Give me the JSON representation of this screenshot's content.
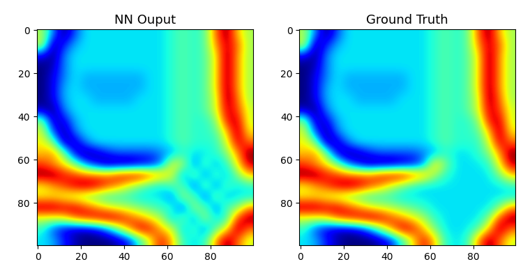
{
  "chart_data": [
    {
      "type": "heatmap",
      "title": "NN Ouput",
      "xlim": [
        -0.5,
        99.5
      ],
      "ylim": [
        99.5,
        -0.5
      ],
      "xticks": [
        0,
        20,
        40,
        60,
        80
      ],
      "yticks": [
        0,
        20,
        40,
        60,
        80
      ],
      "color_range": [
        -1,
        1
      ],
      "cells": [
        [
          0.1,
          -0.5,
          -1,
          -0.6,
          -0.3,
          -0.3,
          -0.3,
          -0.3,
          -0.3,
          -0.3,
          -0.3,
          -0.3,
          -0.2,
          -0.1,
          -0.2,
          -0.1,
          0.6,
          1,
          0.4,
          0.1
        ],
        [
          0.2,
          -1,
          -0.7,
          -0.4,
          -0.3,
          -0.3,
          -0.3,
          -0.3,
          -0.3,
          -0.3,
          -0.3,
          -0.3,
          -0.2,
          -0.1,
          -0.2,
          -0.1,
          0.5,
          0.9,
          0.6,
          0.1
        ],
        [
          -0.8,
          -1,
          -0.5,
          -0.3,
          -0.3,
          -0.3,
          -0.3,
          -0.3,
          -0.3,
          -0.3,
          -0.3,
          -0.3,
          -0.2,
          -0.1,
          -0.2,
          -0.1,
          0.3,
          1,
          0.5,
          0.1
        ],
        [
          -1,
          -0.9,
          -0.5,
          -0.3,
          -0.3,
          -0.3,
          -0.3,
          -0.3,
          -0.3,
          -0.3,
          -0.3,
          -0.3,
          -0.2,
          -0.1,
          -0.2,
          -0.1,
          0.3,
          1,
          0.5,
          0.1
        ],
        [
          -1,
          -0.8,
          -0.5,
          -0.3,
          -0.4,
          -0.4,
          -0.4,
          -0.4,
          -0.4,
          -0.4,
          -0.3,
          -0.3,
          -0.2,
          -0.1,
          -0.2,
          -0.1,
          0.3,
          1,
          0.5,
          0.1
        ],
        [
          -1,
          -0.8,
          -0.4,
          -0.3,
          -0.4,
          -0.4,
          -0.4,
          -0.4,
          -0.4,
          -0.4,
          -0.3,
          -0.3,
          -0.2,
          -0.1,
          -0.2,
          -0.1,
          0.3,
          1,
          0.5,
          0.1
        ],
        [
          -1,
          -0.8,
          -0.4,
          -0.3,
          -0.3,
          -0.4,
          -0.4,
          -0.4,
          -0.4,
          -0.3,
          -0.3,
          -0.3,
          -0.2,
          -0.1,
          -0.2,
          -0.1,
          0.2,
          1,
          0.6,
          0.1
        ],
        [
          -0.9,
          -1,
          -0.5,
          -0.3,
          -0.3,
          -0.3,
          -0.3,
          -0.3,
          -0.3,
          -0.3,
          -0.3,
          -0.3,
          -0.2,
          -0.1,
          -0.2,
          -0.1,
          0.2,
          0.9,
          0.7,
          0.2
        ],
        [
          0,
          -0.9,
          -0.8,
          -0.4,
          -0.3,
          -0.3,
          -0.3,
          -0.3,
          -0.3,
          -0.3,
          -0.3,
          -0.3,
          -0.2,
          -0.1,
          -0.2,
          -0.2,
          0,
          0.8,
          0.9,
          0.2
        ],
        [
          0.2,
          -0.6,
          -1,
          -0.5,
          -0.3,
          -0.3,
          -0.3,
          -0.3,
          -0.3,
          -0.3,
          -0.3,
          -0.3,
          -0.2,
          -0.1,
          -0.2,
          -0.2,
          -0.1,
          0.4,
          1,
          0.3
        ],
        [
          0.3,
          0,
          -0.9,
          -0.9,
          -0.5,
          -0.3,
          -0.3,
          -0.3,
          -0.3,
          -0.3,
          -0.3,
          -0.3,
          -0.2,
          -0.1,
          -0.2,
          -0.2,
          -0.2,
          0.2,
          0.9,
          0.6
        ],
        [
          0.4,
          0.5,
          0,
          -0.8,
          -1,
          -0.9,
          -0.7,
          -0.6,
          -0.6,
          -0.6,
          -0.6,
          -0.5,
          -0.4,
          -0.2,
          -0.3,
          -0.3,
          -0.2,
          0,
          0.5,
          1
        ],
        [
          0.7,
          0.5,
          0.3,
          0,
          -0.5,
          -0.8,
          -1,
          -1,
          -1,
          -0.9,
          -0.8,
          -0.5,
          0.3,
          0.1,
          -0.5,
          -0.1,
          -0.4,
          -0.2,
          0.3,
          0.9
        ],
        [
          1,
          1,
          0.8,
          0.7,
          0.6,
          0.6,
          0.6,
          0.8,
          0.9,
          0.9,
          0.7,
          0.5,
          0.2,
          -0.5,
          0,
          -0.5,
          -0.1,
          -0.4,
          0,
          0.4
        ],
        [
          0.3,
          0.5,
          0.7,
          0.9,
          1,
          0.9,
          0.7,
          0.5,
          0.2,
          0,
          -0.2,
          -0.3,
          -0.1,
          -0.1,
          -0.6,
          0,
          -0.5,
          -0.1,
          -0.3,
          -0.2
        ],
        [
          0.3,
          0.3,
          0.2,
          0.1,
          0,
          -0.1,
          -0.2,
          -0.2,
          -0.2,
          -0.3,
          -0.3,
          -0.3,
          -0.5,
          0.1,
          -0.1,
          -0.6,
          0,
          -0.4,
          -0.3,
          -0.3
        ],
        [
          1,
          1,
          0.9,
          0.9,
          0.7,
          0.5,
          0.3,
          0.2,
          0.1,
          0,
          -0.1,
          -0.2,
          -0.2,
          -0.6,
          0.1,
          -0.1,
          -0.5,
          -0.1,
          0,
          0.5
        ],
        [
          0.2,
          0.2,
          0.3,
          0.6,
          0.8,
          0.9,
          1,
          0.9,
          0.7,
          0.5,
          0.3,
          0.1,
          -0.4,
          0,
          -0.5,
          0.1,
          -0.3,
          -0.2,
          0.7,
          1
        ],
        [
          -0.2,
          -0.6,
          -0.8,
          -0.9,
          -0.9,
          -0.8,
          -0.5,
          0,
          0.5,
          0.9,
          0.8,
          0.4,
          0.2,
          -0.4,
          -0.1,
          -0.5,
          -0.1,
          0.3,
          1,
          0.6
        ],
        [
          -0.3,
          -0.4,
          -0.7,
          -0.9,
          -1,
          -1,
          -1,
          -0.9,
          -0.7,
          -0.2,
          0.3,
          0.8,
          0.4,
          -0.2,
          -0.3,
          -0.2,
          0.5,
          1,
          0.6,
          0.2
        ]
      ]
    },
    {
      "type": "heatmap",
      "title": "Ground Truth",
      "xlim": [
        -0.5,
        99.5
      ],
      "ylim": [
        99.5,
        -0.5
      ],
      "xticks": [
        0,
        20,
        40,
        60,
        80
      ],
      "yticks": [
        0,
        20,
        40,
        60,
        80
      ],
      "color_range": [
        -1,
        1
      ],
      "cells": [
        [
          0.1,
          -0.5,
          -1,
          -0.6,
          -0.3,
          -0.3,
          -0.3,
          -0.3,
          -0.3,
          -0.3,
          -0.3,
          -0.3,
          -0.2,
          -0.1,
          -0.2,
          -0.1,
          0.6,
          1,
          0.4,
          0.1
        ],
        [
          0.2,
          -1,
          -0.7,
          -0.4,
          -0.3,
          -0.3,
          -0.3,
          -0.3,
          -0.3,
          -0.3,
          -0.3,
          -0.3,
          -0.2,
          -0.1,
          -0.2,
          -0.1,
          0.5,
          0.9,
          0.6,
          0.1
        ],
        [
          -0.8,
          -1,
          -0.5,
          -0.3,
          -0.3,
          -0.3,
          -0.3,
          -0.3,
          -0.3,
          -0.3,
          -0.3,
          -0.3,
          -0.2,
          -0.1,
          -0.2,
          -0.1,
          0.3,
          1,
          0.5,
          0.1
        ],
        [
          -1,
          -0.9,
          -0.5,
          -0.3,
          -0.3,
          -0.3,
          -0.3,
          -0.3,
          -0.3,
          -0.3,
          -0.3,
          -0.3,
          -0.2,
          -0.1,
          -0.2,
          -0.1,
          0.3,
          1,
          0.5,
          0.1
        ],
        [
          -1,
          -0.8,
          -0.5,
          -0.3,
          -0.4,
          -0.4,
          -0.4,
          -0.4,
          -0.4,
          -0.4,
          -0.3,
          -0.3,
          -0.2,
          -0.1,
          -0.2,
          -0.1,
          0.3,
          1,
          0.5,
          0.1
        ],
        [
          -1,
          -0.8,
          -0.4,
          -0.3,
          -0.4,
          -0.4,
          -0.4,
          -0.4,
          -0.4,
          -0.4,
          -0.3,
          -0.3,
          -0.2,
          -0.1,
          -0.2,
          -0.1,
          0.3,
          1,
          0.5,
          0.1
        ],
        [
          -1,
          -0.8,
          -0.4,
          -0.3,
          -0.3,
          -0.4,
          -0.4,
          -0.4,
          -0.4,
          -0.3,
          -0.3,
          -0.3,
          -0.2,
          -0.1,
          -0.2,
          -0.1,
          0.2,
          1,
          0.6,
          0.1
        ],
        [
          -0.9,
          -1,
          -0.5,
          -0.3,
          -0.3,
          -0.3,
          -0.3,
          -0.3,
          -0.3,
          -0.3,
          -0.3,
          -0.3,
          -0.2,
          -0.1,
          -0.2,
          -0.1,
          0.2,
          0.9,
          0.7,
          0.2
        ],
        [
          0,
          -0.9,
          -0.8,
          -0.4,
          -0.3,
          -0.3,
          -0.3,
          -0.3,
          -0.3,
          -0.3,
          -0.3,
          -0.3,
          -0.2,
          -0.1,
          -0.2,
          -0.2,
          0,
          0.8,
          0.9,
          0.2
        ],
        [
          0.2,
          -0.6,
          -1,
          -0.5,
          -0.3,
          -0.3,
          -0.3,
          -0.3,
          -0.3,
          -0.3,
          -0.3,
          -0.3,
          -0.2,
          -0.1,
          -0.2,
          -0.2,
          -0.1,
          0.4,
          1,
          0.3
        ],
        [
          0.3,
          0,
          -0.9,
          -0.9,
          -0.5,
          -0.3,
          -0.3,
          -0.3,
          -0.3,
          -0.3,
          -0.3,
          -0.3,
          -0.2,
          -0.1,
          -0.2,
          -0.2,
          -0.2,
          0.2,
          0.9,
          0.6
        ],
        [
          0.4,
          0.5,
          0,
          -0.8,
          -1,
          -0.9,
          -0.7,
          -0.6,
          -0.6,
          -0.6,
          -0.6,
          -0.5,
          -0.4,
          -0.2,
          -0.3,
          -0.3,
          -0.2,
          0,
          0.5,
          1
        ],
        [
          0.7,
          0.5,
          0.3,
          0,
          -0.5,
          -0.8,
          -1,
          -1,
          -1,
          -0.9,
          -0.8,
          -0.5,
          0.4,
          0,
          -0.3,
          -0.3,
          -0.3,
          -0.2,
          0.3,
          0.9
        ],
        [
          1,
          1,
          0.8,
          0.7,
          0.6,
          0.6,
          0.6,
          0.8,
          0.9,
          0.9,
          0.7,
          0.5,
          0.1,
          -0.2,
          -0.3,
          -0.3,
          -0.3,
          -0.3,
          0,
          0.4
        ],
        [
          0.3,
          0.5,
          0.7,
          0.9,
          1,
          0.9,
          0.7,
          0.5,
          0.2,
          0,
          -0.2,
          -0.3,
          -0.3,
          -0.3,
          -0.3,
          -0.3,
          -0.3,
          -0.3,
          -0.3,
          -0.2
        ],
        [
          0.3,
          0.3,
          0.2,
          0.1,
          0,
          -0.1,
          -0.2,
          -0.2,
          -0.2,
          -0.3,
          -0.3,
          -0.3,
          -0.3,
          -0.3,
          -0.3,
          -0.3,
          -0.3,
          -0.3,
          -0.3,
          -0.3
        ],
        [
          1,
          1,
          0.9,
          0.9,
          0.7,
          0.5,
          0.3,
          0.2,
          0.1,
          0,
          -0.1,
          -0.2,
          -0.3,
          -0.3,
          -0.3,
          -0.3,
          -0.3,
          -0.3,
          0,
          0.5
        ],
        [
          0.2,
          0.2,
          0.3,
          0.6,
          0.8,
          0.9,
          1,
          0.9,
          0.7,
          0.5,
          0.3,
          0.1,
          -0.2,
          -0.3,
          -0.3,
          -0.3,
          -0.3,
          0,
          0.7,
          1
        ],
        [
          -0.2,
          -0.6,
          -0.8,
          -0.9,
          -0.9,
          -0.8,
          -0.5,
          0,
          0.5,
          0.9,
          0.8,
          0.4,
          0,
          -0.3,
          -0.3,
          -0.3,
          -0.1,
          0.4,
          1,
          0.6
        ],
        [
          -0.3,
          -0.4,
          -0.7,
          -0.9,
          -1,
          -1,
          -1,
          -0.9,
          -0.7,
          -0.2,
          0.3,
          0.8,
          0.4,
          -0.2,
          -0.3,
          -0.2,
          0.5,
          1,
          0.6,
          0.2
        ]
      ]
    }
  ]
}
